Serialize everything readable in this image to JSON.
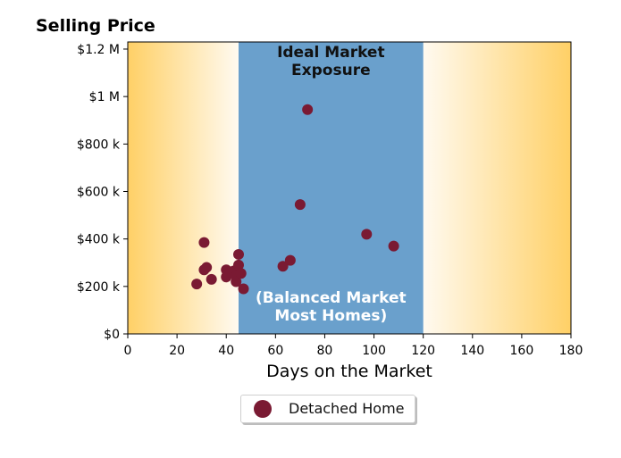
{
  "chart_data": {
    "type": "scatter",
    "title": "Selling Price",
    "xlabel": "Days on the Market",
    "ylabel": "",
    "xlim": [
      0,
      180
    ],
    "ylim": [
      0,
      1230000
    ],
    "x_ticks": [
      0,
      20,
      40,
      60,
      80,
      100,
      120,
      140,
      160,
      180
    ],
    "x_tick_labels": [
      "0",
      "20",
      "40",
      "60",
      "80",
      "100",
      "120",
      "140",
      "160",
      "180"
    ],
    "y_ticks": [
      0,
      200000,
      400000,
      600000,
      800000,
      1000000,
      1200000
    ],
    "y_tick_labels": [
      "$0",
      "$200 k",
      "$400 k",
      "$600 k",
      "$800 k",
      "$1 M",
      "$1.2 M"
    ],
    "grid": false,
    "legend_placement": "bottom-center",
    "bands": [
      {
        "x_range": [
          45,
          120
        ],
        "color": "#6aa0cc",
        "label_top": [
          "Ideal Market",
          "Exposure"
        ],
        "label_bottom": [
          "(Balanced Market",
          "Most Homes)"
        ]
      }
    ],
    "background_gradient": {
      "edge_color": "#ffd066",
      "center_color": "#fffaf0"
    },
    "series": [
      {
        "name": "Detached Home",
        "color": "#7a1a33",
        "points": [
          {
            "x": 28,
            "y": 210000
          },
          {
            "x": 31,
            "y": 270000
          },
          {
            "x": 31,
            "y": 385000
          },
          {
            "x": 32,
            "y": 280000
          },
          {
            "x": 34,
            "y": 230000
          },
          {
            "x": 40,
            "y": 240000
          },
          {
            "x": 40,
            "y": 270000
          },
          {
            "x": 41,
            "y": 255000
          },
          {
            "x": 43,
            "y": 265000
          },
          {
            "x": 44,
            "y": 220000
          },
          {
            "x": 44,
            "y": 245000
          },
          {
            "x": 45,
            "y": 290000
          },
          {
            "x": 45,
            "y": 335000
          },
          {
            "x": 46,
            "y": 255000
          },
          {
            "x": 47,
            "y": 190000
          },
          {
            "x": 63,
            "y": 285000
          },
          {
            "x": 66,
            "y": 310000
          },
          {
            "x": 70,
            "y": 545000
          },
          {
            "x": 73,
            "y": 945000
          },
          {
            "x": 97,
            "y": 420000
          },
          {
            "x": 108,
            "y": 370000
          }
        ]
      }
    ]
  },
  "legend": {
    "label": "Detached Home"
  }
}
